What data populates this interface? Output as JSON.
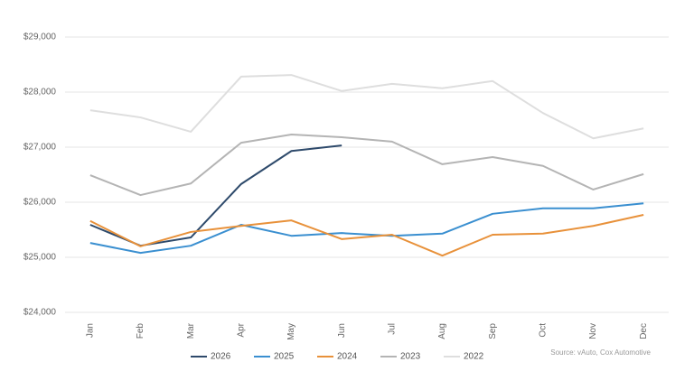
{
  "chart_data": {
    "type": "line",
    "categories": [
      "Jan",
      "Feb",
      "Mar",
      "Apr",
      "May",
      "Jun",
      "Jul",
      "Aug",
      "Sep",
      "Oct",
      "Nov",
      "Dec"
    ],
    "series": [
      {
        "name": "2026",
        "color": "#2e4a6b",
        "values": [
          25590,
          25210,
          25360,
          26330,
          26930,
          27030,
          null,
          null,
          null,
          null,
          null,
          null
        ]
      },
      {
        "name": "2025",
        "color": "#3a8fd0",
        "values": [
          25260,
          25080,
          25210,
          25590,
          25390,
          25440,
          25390,
          25430,
          25790,
          25890,
          25890,
          25980
        ]
      },
      {
        "name": "2024",
        "color": "#e8913a",
        "values": [
          25660,
          25200,
          25460,
          25570,
          25670,
          25330,
          25410,
          25030,
          25410,
          25430,
          25570,
          25770
        ]
      },
      {
        "name": "2023",
        "color": "#b4b4b4",
        "values": [
          26490,
          26130,
          26340,
          27080,
          27230,
          27180,
          27100,
          26690,
          26820,
          26660,
          26230,
          26510
        ]
      },
      {
        "name": "2022",
        "color": "#dedede",
        "values": [
          27670,
          27540,
          27280,
          28280,
          28310,
          28020,
          28150,
          28070,
          28200,
          27620,
          27160,
          27340
        ]
      }
    ],
    "ylim": [
      24000,
      29000
    ],
    "yticks": [
      {
        "value": 24000,
        "label": "$24,000"
      },
      {
        "value": 25000,
        "label": "$25,000"
      },
      {
        "value": 26000,
        "label": "$26,000"
      },
      {
        "value": 27000,
        "label": "$27,000"
      },
      {
        "value": 28000,
        "label": "$28,000"
      },
      {
        "value": 29000,
        "label": "$29,000"
      }
    ],
    "grid": true,
    "legend": "bottom",
    "note": "Source: vAuto, Cox Automotive"
  }
}
